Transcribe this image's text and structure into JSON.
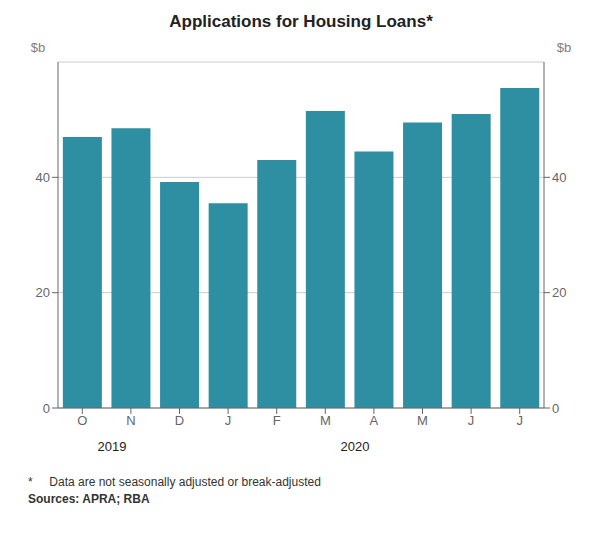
{
  "chart_data": {
    "type": "bar",
    "title": "Applications for Housing Loans*",
    "categories": [
      "O",
      "N",
      "D",
      "J",
      "F",
      "M",
      "A",
      "M",
      "J",
      "J"
    ],
    "values": [
      47.0,
      48.5,
      39.2,
      35.5,
      43.0,
      51.5,
      44.5,
      49.5,
      51.0,
      55.5
    ],
    "color": "#2E8FA3",
    "ylim": [
      0,
      60
    ],
    "yticks": [
      0,
      20,
      40
    ],
    "ylabel": "$b",
    "y2lim": [
      0,
      60
    ],
    "y2ticks": [
      0,
      20,
      40
    ],
    "y2label": "$b",
    "grid": true,
    "annotations": [
      {
        "text": "2019",
        "x": 1.0
      },
      {
        "text": "2020",
        "x": 5.5
      },
      {
        "text": "*     Data are not seasonally adjusted or break-adjusted"
      },
      {
        "text": "Sources: APRA; RBA"
      }
    ]
  }
}
